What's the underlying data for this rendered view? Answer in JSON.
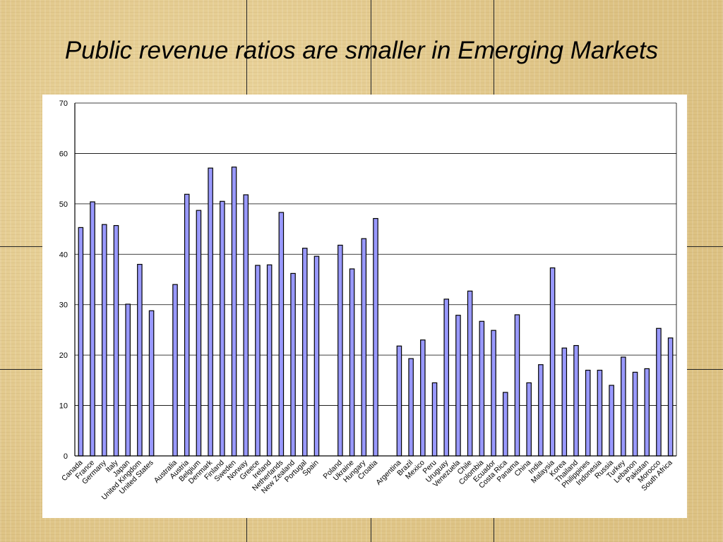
{
  "slide": {
    "title": "Public revenue ratios are smaller in Emerging Markets"
  },
  "chart_data": {
    "type": "bar",
    "title": "",
    "xlabel": "",
    "ylabel": "",
    "ylim": [
      0,
      70
    ],
    "yticks": [
      0,
      10,
      20,
      30,
      40,
      50,
      60,
      70
    ],
    "grid": true,
    "bar_color": "#9999ff",
    "categories": [
      "Canada",
      "France",
      "Germany",
      "Italy",
      "Japan",
      "United Kingdom",
      "United States",
      "",
      "Australia",
      "Austria",
      "Belgium",
      "Denmark",
      "Finland",
      "Sweden",
      "Norway",
      "Greece",
      "Ireland",
      "Netherlands",
      "New Zealand",
      "Portugal",
      "Spain",
      "",
      "Poland",
      "Ukraine",
      "Hungary",
      "Croatia",
      "",
      "Argentina",
      "Brazil",
      "Mexico",
      "Peru",
      "Uruguay",
      "Venezuela",
      "Chile",
      "Colombia",
      "Ecuador",
      "Costa Rica",
      "Panama",
      "China",
      "India",
      "Malaysia",
      "Korea",
      "Thailand",
      "Philippines",
      "Indonesia",
      "Russia",
      "Turkey",
      "Lebanon",
      "Pakistan",
      "Morocco",
      "South Africa"
    ],
    "values": [
      45.3,
      50.4,
      45.9,
      45.7,
      30.1,
      38.0,
      28.8,
      null,
      34.0,
      51.9,
      48.7,
      57.1,
      50.5,
      57.3,
      51.8,
      37.8,
      37.9,
      48.3,
      36.2,
      41.2,
      39.6,
      null,
      41.8,
      37.1,
      43.1,
      47.1,
      null,
      21.8,
      19.3,
      23.0,
      14.5,
      31.1,
      27.9,
      32.7,
      26.7,
      24.9,
      12.6,
      28.0,
      14.5,
      18.1,
      37.3,
      21.4,
      21.9,
      17.0,
      17.0,
      14.0,
      19.6,
      16.6,
      17.3,
      25.3,
      23.4
    ]
  }
}
